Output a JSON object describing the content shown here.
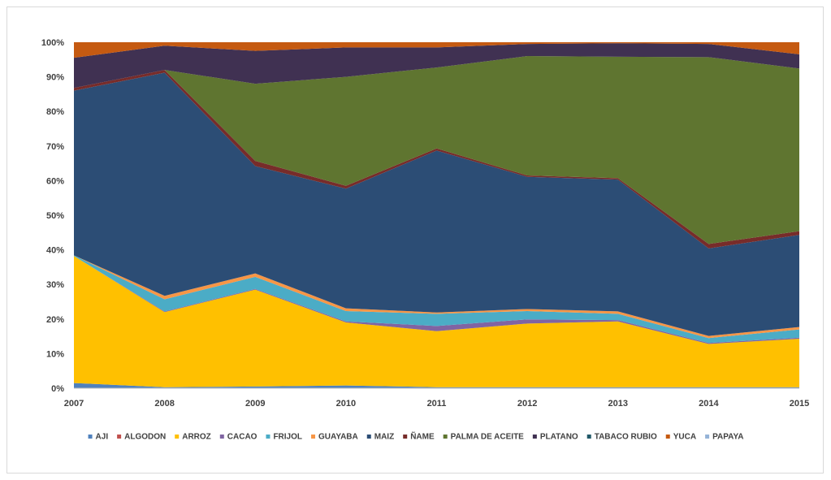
{
  "chart_data": {
    "type": "area",
    "stacked": true,
    "normalized_percent": true,
    "x": [
      "2007",
      "2008",
      "2009",
      "2010",
      "2011",
      "2012",
      "2013",
      "2014",
      "2015"
    ],
    "xlabel": "",
    "ylabel": "",
    "ylim": [
      0,
      100
    ],
    "yticks": [
      "0%",
      "10%",
      "20%",
      "30%",
      "40%",
      "50%",
      "60%",
      "70%",
      "80%",
      "90%",
      "100%"
    ],
    "grid": false,
    "legend": "bottom",
    "series": [
      {
        "name": "AJI",
        "color": "#4f81bd",
        "values": [
          1.5,
          0.3,
          0.5,
          0.8,
          0.3,
          0.3,
          0.3,
          0.3,
          0.3
        ]
      },
      {
        "name": "ALGODON",
        "color": "#c0504d",
        "values": [
          0,
          0,
          0,
          0,
          0,
          0,
          0,
          0,
          0
        ]
      },
      {
        "name": "ARROZ",
        "color": "#ffc000",
        "values": [
          36.7,
          21.7,
          28.0,
          18.2,
          16.2,
          18.4,
          19.0,
          12.5,
          14.0
        ]
      },
      {
        "name": "CACAO",
        "color": "#8064a2",
        "values": [
          0,
          0.2,
          0.2,
          0.3,
          1.5,
          1.2,
          0.4,
          0.3,
          0.3
        ]
      },
      {
        "name": "FRIJOL",
        "color": "#4bacc6",
        "values": [
          0.2,
          3.5,
          3.5,
          3.0,
          3.5,
          2.4,
          1.8,
          1.4,
          2.4
        ]
      },
      {
        "name": "GUAYABA",
        "color": "#f79646",
        "values": [
          0,
          1.0,
          1.0,
          0.8,
          0.4,
          0.6,
          0.7,
          0.6,
          0.7
        ]
      },
      {
        "name": "MAIZ",
        "color": "#2c4d75",
        "values": [
          47.6,
          64.5,
          31.0,
          34.6,
          46.8,
          38.2,
          38.1,
          25.3,
          26.6
        ]
      },
      {
        "name": "ÑAME",
        "color": "#772c2a",
        "values": [
          0.8,
          0.8,
          1.5,
          0.8,
          0.6,
          0.4,
          0.4,
          1.3,
          1.1
        ]
      },
      {
        "name": "PALMA DE ACEITE",
        "color": "#5f7530",
        "values": [
          0,
          0,
          22.3,
          31.5,
          23.4,
          34.5,
          35.1,
          54.0,
          47.0
        ]
      },
      {
        "name": "PLATANO",
        "color": "#403152",
        "values": [
          8.7,
          7.0,
          9.5,
          8.5,
          5.8,
          3.5,
          3.9,
          3.8,
          4.1
        ]
      },
      {
        "name": "TABACO RUBIO",
        "color": "#215968",
        "values": [
          0,
          0,
          0,
          0,
          0,
          0,
          0,
          0,
          0
        ]
      },
      {
        "name": "YUCA",
        "color": "#c55a11",
        "values": [
          4.5,
          1.0,
          2.5,
          1.5,
          1.5,
          0.5,
          0.3,
          0.5,
          3.5
        ]
      },
      {
        "name": "PAPAYA",
        "color": "#95b3d7",
        "values": [
          0,
          0,
          0,
          0,
          0,
          0,
          0,
          0,
          0
        ]
      }
    ]
  }
}
